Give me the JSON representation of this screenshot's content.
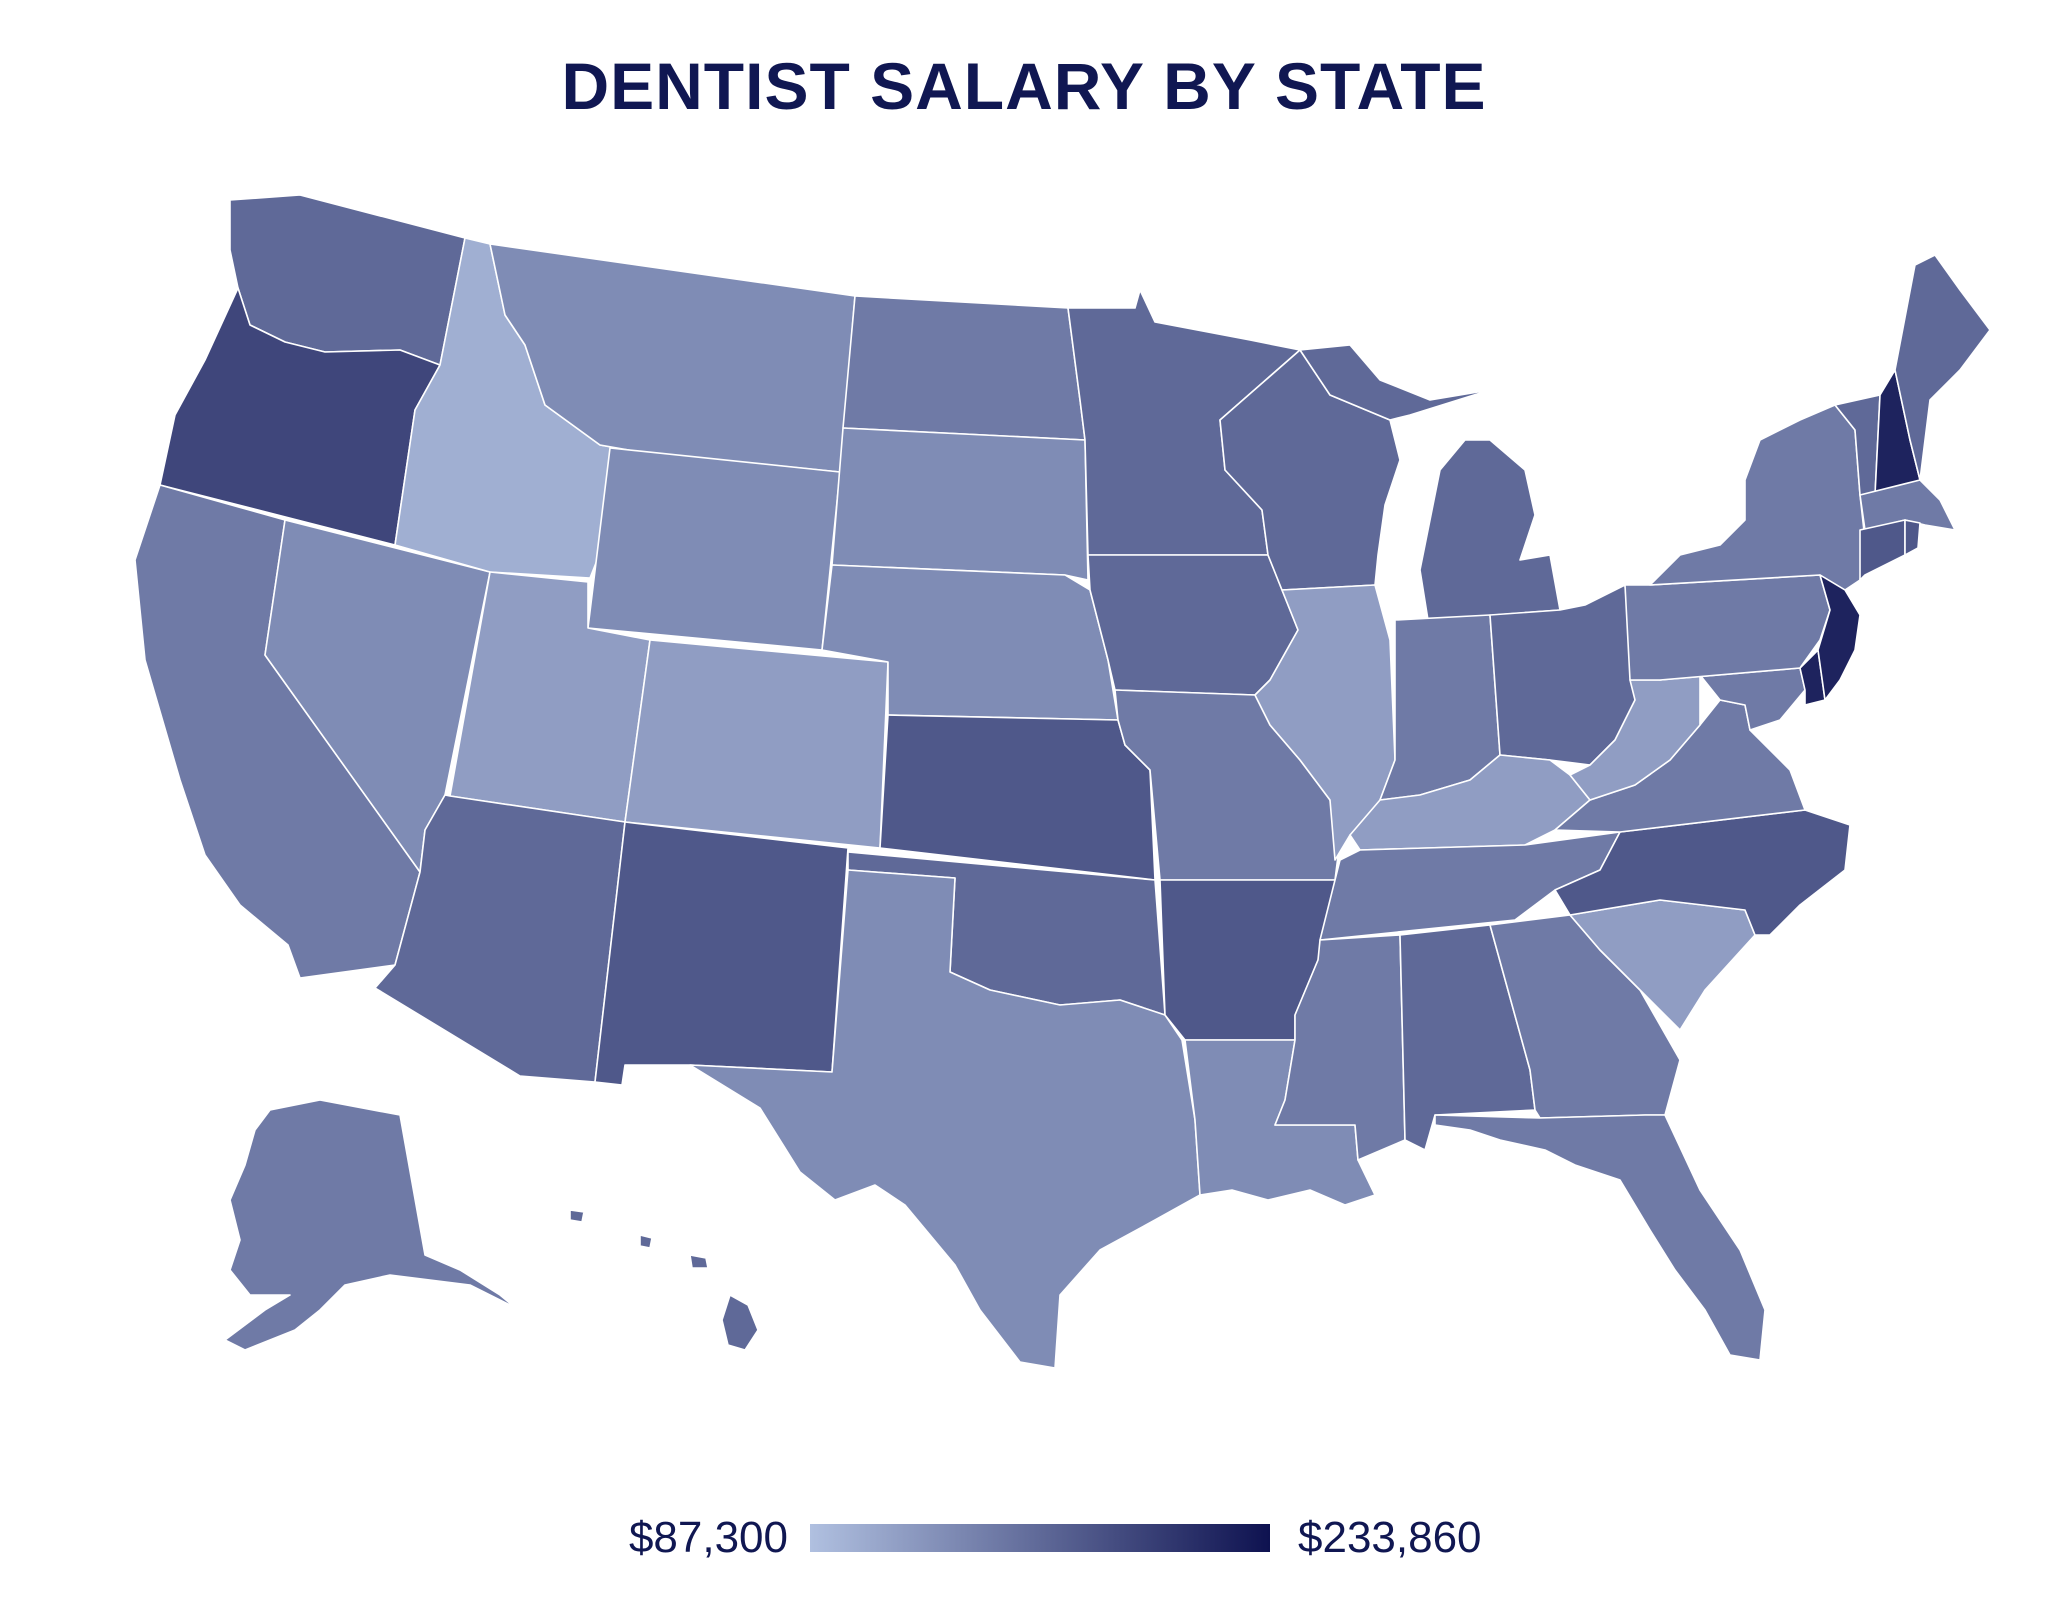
{
  "title": "DENTIST SALARY BY STATE",
  "colors": {
    "title": "#101752",
    "legend_text": "#101752",
    "scale_min": "#b0c0e0",
    "scale_max": "#0e1250"
  },
  "legend": {
    "min_label": "$87,300",
    "max_label": "$233,860",
    "min_value": 87300,
    "max_value": 233860
  },
  "map_data": {
    "type": "choropleth",
    "region": "United States",
    "metric": "dentist salary",
    "shade_levels": {
      "WA": 5,
      "OR": 7,
      "CA": 4,
      "NV": 3,
      "ID": 1,
      "MT": 3,
      "WY": 3,
      "UT": 2,
      "CO": 2,
      "AZ": 5,
      "NM": 6,
      "ND": 4,
      "SD": 3,
      "NE": 3,
      "KS": 6,
      "OK": 5,
      "TX": 3,
      "MN": 5,
      "IA": 5,
      "MO": 4,
      "AR": 6,
      "LA": 3,
      "WI": 5,
      "IL": 2,
      "MI": 5,
      "IN": 4,
      "OH": 5,
      "KY": 2,
      "TN": 4,
      "MS": 4,
      "AL": 5,
      "GA": 4,
      "FL": 4,
      "SC": 2,
      "NC": 6,
      "VA": 4,
      "WV": 2,
      "PA": 4,
      "NY": 4,
      "VT": 5,
      "NH": 9,
      "ME": 5,
      "MA": 4,
      "RI": 6,
      "CT": 6,
      "NJ": 9,
      "DE": 9,
      "MD": 4,
      "AK": 4,
      "HI": 5
    }
  }
}
